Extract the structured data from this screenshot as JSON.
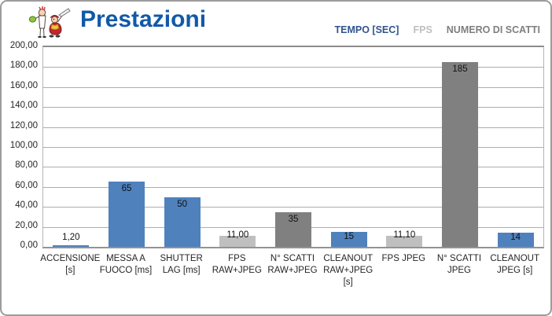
{
  "header": {
    "title": "Prestazioni",
    "title_color": "#1159A8",
    "logo_icon": "cartoon-characters-logo"
  },
  "legend": {
    "items": [
      {
        "label": "TEMPO [SEC]",
        "color": "#31548F"
      },
      {
        "label": "FPS",
        "color": "#BFBFBF"
      },
      {
        "label": "NUMERO DI SCATTI",
        "color": "#7F7F7F"
      }
    ]
  },
  "chart_data": {
    "type": "bar",
    "title": "Prestazioni",
    "xlabel": "",
    "ylabel": "",
    "ylim": [
      0,
      200
    ],
    "ytick_step": 20,
    "ytick_labels": [
      "0,00",
      "20,00",
      "40,00",
      "60,00",
      "80,00",
      "100,00",
      "120,00",
      "140,00",
      "160,00",
      "180,00",
      "200,00"
    ],
    "grid": true,
    "legend_position": "top-right",
    "decimal_separator": ",",
    "categories": [
      "ACCENSIONE [s]",
      "MESSA A FUOCO [ms]",
      "SHUTTER LAG [ms]",
      "FPS RAW+JPEG",
      "N° SCATTI RAW+JPEG",
      "CLEANOUT RAW+JPEG [s]",
      "FPS JPEG",
      "N° SCATTI JPEG",
      "CLEANOUT JPEG [s]"
    ],
    "series_colors": {
      "TEMPO [SEC]": "#4F81BD",
      "FPS": "#BFBFBF",
      "NUMERO DI SCATTI": "#808080"
    },
    "points": [
      {
        "category_lines": [
          "ACCENSIONE",
          "[s]"
        ],
        "value": 1.2,
        "label": "1,20",
        "series": "TEMPO [SEC]"
      },
      {
        "category_lines": [
          "MESSA A",
          "FUOCO [ms]"
        ],
        "value": 65,
        "label": "65",
        "series": "TEMPO [SEC]"
      },
      {
        "category_lines": [
          "SHUTTER",
          "LAG [ms]"
        ],
        "value": 50,
        "label": "50",
        "series": "TEMPO [SEC]"
      },
      {
        "category_lines": [
          "FPS",
          "RAW+JPEG"
        ],
        "value": 11,
        "label": "11,00",
        "series": "FPS"
      },
      {
        "category_lines": [
          "N° SCATTI",
          "RAW+JPEG"
        ],
        "value": 35,
        "label": "35",
        "series": "NUMERO DI SCATTI"
      },
      {
        "category_lines": [
          "CLEANOUT",
          "RAW+JPEG",
          "[s]"
        ],
        "value": 15,
        "label": "15",
        "series": "TEMPO [SEC]"
      },
      {
        "category_lines": [
          "FPS JPEG"
        ],
        "value": 11.1,
        "label": "11,10",
        "series": "FPS"
      },
      {
        "category_lines": [
          "N° SCATTI",
          "JPEG"
        ],
        "value": 185,
        "label": "185",
        "series": "NUMERO DI SCATTI"
      },
      {
        "category_lines": [
          "CLEANOUT",
          "JPEG [s]"
        ],
        "value": 14,
        "label": "14",
        "series": "TEMPO [SEC]"
      }
    ]
  }
}
